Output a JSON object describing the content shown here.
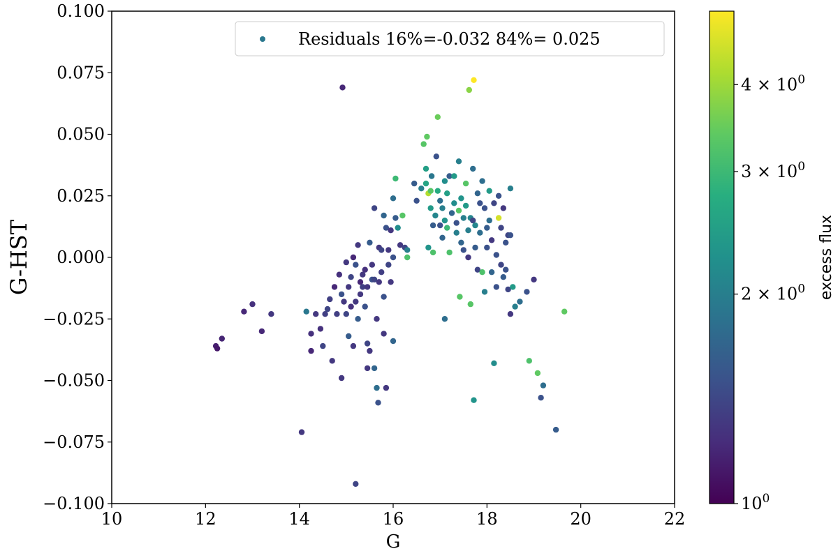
{
  "chart_data": {
    "type": "scatter",
    "xlabel": "G",
    "ylabel": "G-HST",
    "xlim": [
      10,
      22
    ],
    "ylim": [
      -0.1,
      0.1
    ],
    "x_ticks": [
      10,
      12,
      14,
      16,
      18,
      20,
      22
    ],
    "x_tick_labels": [
      "10",
      "12",
      "14",
      "16",
      "18",
      "20",
      "22"
    ],
    "y_ticks": [
      -0.1,
      -0.075,
      -0.05,
      -0.025,
      0.0,
      0.025,
      0.05,
      0.075,
      0.1
    ],
    "y_tick_labels": [
      "−0.100",
      "−0.075",
      "−0.050",
      "−0.025",
      "0.000",
      "0.025",
      "0.050",
      "0.075",
      "0.100"
    ],
    "grid": false,
    "legend": {
      "placement": "top-right",
      "label": "Residuals 16%=-0.032 84%= 0.025",
      "marker_color": "#2a788e"
    },
    "colorbar": {
      "label": "excess flux",
      "scale": "log",
      "colormap": "viridis",
      "range": [
        1,
        5.1
      ],
      "ticks": [
        1,
        2,
        3,
        4
      ],
      "tick_labels": [
        {
          "base": "10",
          "exp": "0"
        },
        {
          "base": "2 × 10",
          "exp": "0"
        },
        {
          "base": "3 × 10",
          "exp": "0"
        },
        {
          "base": "4 × 10",
          "exp": "0"
        }
      ]
    },
    "points": [
      [
        12.22,
        -0.036,
        1.15
      ],
      [
        12.25,
        -0.037,
        1.12
      ],
      [
        12.35,
        -0.033,
        1.18
      ],
      [
        12.82,
        -0.022,
        1.2
      ],
      [
        13.0,
        -0.019,
        1.25
      ],
      [
        13.2,
        -0.03,
        1.2
      ],
      [
        13.4,
        -0.023,
        1.3
      ],
      [
        14.05,
        -0.071,
        1.3
      ],
      [
        14.15,
        -0.022,
        1.9
      ],
      [
        14.25,
        -0.031,
        1.25
      ],
      [
        14.25,
        -0.038,
        1.2
      ],
      [
        14.35,
        -0.023,
        1.3
      ],
      [
        14.45,
        -0.029,
        1.25
      ],
      [
        14.5,
        -0.036,
        1.4
      ],
      [
        14.55,
        -0.023,
        1.35
      ],
      [
        14.6,
        -0.021,
        1.4
      ],
      [
        14.65,
        -0.017,
        1.35
      ],
      [
        14.7,
        -0.042,
        1.3
      ],
      [
        14.75,
        -0.012,
        1.2
      ],
      [
        14.8,
        -0.023,
        1.35
      ],
      [
        14.85,
        -0.007,
        1.25
      ],
      [
        14.9,
        -0.015,
        1.5
      ],
      [
        14.9,
        -0.049,
        1.3
      ],
      [
        14.92,
        0.069,
        1.2
      ],
      [
        14.95,
        -0.018,
        1.3
      ],
      [
        15.0,
        -0.002,
        1.3
      ],
      [
        15.0,
        -0.023,
        1.4
      ],
      [
        15.05,
        -0.012,
        1.3
      ],
      [
        15.05,
        -0.032,
        1.6
      ],
      [
        15.1,
        -0.008,
        1.4
      ],
      [
        15.1,
        -0.02,
        1.25
      ],
      [
        15.15,
        0.0,
        1.2
      ],
      [
        15.15,
        -0.036,
        1.3
      ],
      [
        15.2,
        -0.003,
        1.5
      ],
      [
        15.2,
        -0.018,
        1.3
      ],
      [
        15.2,
        -0.092,
        1.4
      ],
      [
        15.25,
        0.005,
        1.3
      ],
      [
        15.25,
        -0.025,
        1.6
      ],
      [
        15.3,
        -0.01,
        1.2
      ],
      [
        15.3,
        -0.015,
        1.3
      ],
      [
        15.35,
        -0.007,
        1.3
      ],
      [
        15.35,
        -0.012,
        1.35
      ],
      [
        15.4,
        -0.02,
        1.5
      ],
      [
        15.4,
        -0.005,
        1.25
      ],
      [
        15.45,
        -0.012,
        1.3
      ],
      [
        15.45,
        -0.035,
        1.4
      ],
      [
        15.45,
        -0.045,
        1.3
      ],
      [
        15.5,
        0.006,
        1.6
      ],
      [
        15.5,
        -0.038,
        1.3
      ],
      [
        15.55,
        -0.003,
        1.3
      ],
      [
        15.55,
        -0.009,
        1.5
      ],
      [
        15.6,
        -0.009,
        1.4
      ],
      [
        15.6,
        -0.045,
        1.7
      ],
      [
        15.6,
        0.02,
        1.4
      ],
      [
        15.65,
        -0.025,
        1.3
      ],
      [
        15.65,
        -0.053,
        1.8
      ],
      [
        15.68,
        -0.059,
        1.5
      ],
      [
        15.7,
        0.004,
        1.3
      ],
      [
        15.7,
        -0.01,
        1.3
      ],
      [
        15.75,
        0.003,
        1.4
      ],
      [
        15.75,
        -0.006,
        1.35
      ],
      [
        15.8,
        0.017,
        1.7
      ],
      [
        15.8,
        -0.016,
        1.5
      ],
      [
        15.8,
        -0.031,
        1.3
      ],
      [
        15.85,
        0.012,
        1.5
      ],
      [
        15.85,
        -0.053,
        1.3
      ],
      [
        15.9,
        -0.003,
        1.4
      ],
      [
        15.9,
        0.003,
        1.3
      ],
      [
        15.95,
        0.011,
        1.3
      ],
      [
        15.95,
        -0.01,
        1.3
      ],
      [
        16.0,
        0.0,
        1.5
      ],
      [
        16.0,
        0.024,
        1.8
      ],
      [
        16.0,
        -0.034,
        1.7
      ],
      [
        16.05,
        0.032,
        3.0
      ],
      [
        16.05,
        0.016,
        1.6
      ],
      [
        16.1,
        0.012,
        2.2
      ],
      [
        16.15,
        0.005,
        1.3
      ],
      [
        16.2,
        0.017,
        3.3
      ],
      [
        16.25,
        0.004,
        1.4
      ],
      [
        16.3,
        0.003,
        2.0
      ],
      [
        16.3,
        0.0,
        3.2
      ],
      [
        16.45,
        0.03,
        1.6
      ],
      [
        16.5,
        0.023,
        1.5
      ],
      [
        16.6,
        0.028,
        2.0
      ],
      [
        16.65,
        0.046,
        3.3
      ],
      [
        16.7,
        0.036,
        2.5
      ],
      [
        16.7,
        0.03,
        2.6
      ],
      [
        16.72,
        0.049,
        3.4
      ],
      [
        16.75,
        0.004,
        2.3
      ],
      [
        16.75,
        0.026,
        4.2
      ],
      [
        16.8,
        0.027,
        3.3
      ],
      [
        16.8,
        0.02,
        2.4
      ],
      [
        16.82,
        0.033,
        1.9
      ],
      [
        16.85,
        0.002,
        3.2
      ],
      [
        16.85,
        0.013,
        1.6
      ],
      [
        16.9,
        0.017,
        2.1
      ],
      [
        16.92,
        0.041,
        1.5
      ],
      [
        16.95,
        0.057,
        3.5
      ],
      [
        16.95,
        0.027,
        2.7
      ],
      [
        17.0,
        0.013,
        1.5
      ],
      [
        17.0,
        0.023,
        1.8
      ],
      [
        17.05,
        0.008,
        1.7
      ],
      [
        17.05,
        0.02,
        2.0
      ],
      [
        17.1,
        0.031,
        2.2
      ],
      [
        17.1,
        0.015,
        2.3
      ],
      [
        17.1,
        -0.025,
        1.8
      ],
      [
        17.15,
        0.012,
        3.0
      ],
      [
        17.15,
        0.026,
        2.5
      ],
      [
        17.2,
        0.033,
        1.6
      ],
      [
        17.2,
        0.002,
        3.2
      ],
      [
        17.25,
        0.018,
        1.7
      ],
      [
        17.3,
        0.033,
        2.4
      ],
      [
        17.3,
        0.022,
        2.2
      ],
      [
        17.35,
        0.014,
        1.5
      ],
      [
        17.35,
        0.01,
        2.0
      ],
      [
        17.4,
        0.039,
        2.0
      ],
      [
        17.4,
        0.019,
        3.3
      ],
      [
        17.42,
        -0.016,
        3.3
      ],
      [
        17.45,
        0.024,
        2.3
      ],
      [
        17.45,
        0.006,
        1.7
      ],
      [
        17.5,
        0.016,
        2.0
      ],
      [
        17.5,
        0.003,
        1.5
      ],
      [
        17.55,
        0.03,
        3.3
      ],
      [
        17.55,
        0.021,
        2.4
      ],
      [
        17.6,
        0.011,
        2.0
      ],
      [
        17.6,
        0.0,
        1.3
      ],
      [
        17.62,
        0.068,
        3.8
      ],
      [
        17.65,
        -0.019,
        3.3
      ],
      [
        17.65,
        0.016,
        2.1
      ],
      [
        17.7,
        0.036,
        1.8
      ],
      [
        17.7,
        0.015,
        1.4
      ],
      [
        17.72,
        0.072,
        5.1
      ],
      [
        17.72,
        -0.058,
        2.3
      ],
      [
        17.75,
        0.013,
        2.1
      ],
      [
        17.75,
        0.004,
        1.6
      ],
      [
        17.8,
        0.026,
        1.7
      ],
      [
        17.8,
        -0.005,
        1.4
      ],
      [
        17.85,
        0.022,
        1.5
      ],
      [
        17.85,
        0.01,
        1.8
      ],
      [
        17.9,
        -0.006,
        3.2
      ],
      [
        17.9,
        0.031,
        1.8
      ],
      [
        17.95,
        0.02,
        1.5
      ],
      [
        17.95,
        -0.014,
        2.0
      ],
      [
        18.0,
        0.012,
        1.6
      ],
      [
        18.0,
        0.004,
        1.5
      ],
      [
        18.05,
        0.027,
        2.4
      ],
      [
        18.05,
        0.015,
        1.8
      ],
      [
        18.1,
        0.007,
        1.3
      ],
      [
        18.1,
        -0.006,
        1.7
      ],
      [
        18.15,
        0.022,
        1.4
      ],
      [
        18.15,
        -0.043,
        2.2
      ],
      [
        18.2,
        0.001,
        1.5
      ],
      [
        18.2,
        -0.012,
        1.5
      ],
      [
        18.25,
        0.016,
        4.6
      ],
      [
        18.25,
        0.025,
        1.5
      ],
      [
        18.3,
        0.012,
        1.4
      ],
      [
        18.3,
        -0.003,
        1.4
      ],
      [
        18.35,
        -0.008,
        1.6
      ],
      [
        18.35,
        0.02,
        1.3
      ],
      [
        18.4,
        0.006,
        1.5
      ],
      [
        18.4,
        -0.005,
        1.5
      ],
      [
        18.45,
        0.009,
        1.4
      ],
      [
        18.45,
        -0.013,
        1.4
      ],
      [
        18.5,
        0.028,
        2.0
      ],
      [
        18.5,
        0.009,
        1.5
      ],
      [
        18.5,
        -0.023,
        1.3
      ],
      [
        18.55,
        -0.012,
        2.4
      ],
      [
        18.6,
        -0.02,
        2.0
      ],
      [
        18.7,
        -0.018,
        1.8
      ],
      [
        18.85,
        -0.014,
        1.5
      ],
      [
        18.9,
        -0.042,
        3.2
      ],
      [
        19.0,
        -0.009,
        1.3
      ],
      [
        19.08,
        -0.047,
        3.4
      ],
      [
        19.15,
        -0.057,
        1.5
      ],
      [
        19.2,
        -0.052,
        1.8
      ],
      [
        19.47,
        -0.07,
        1.6
      ],
      [
        19.65,
        -0.022,
        3.4
      ]
    ]
  }
}
